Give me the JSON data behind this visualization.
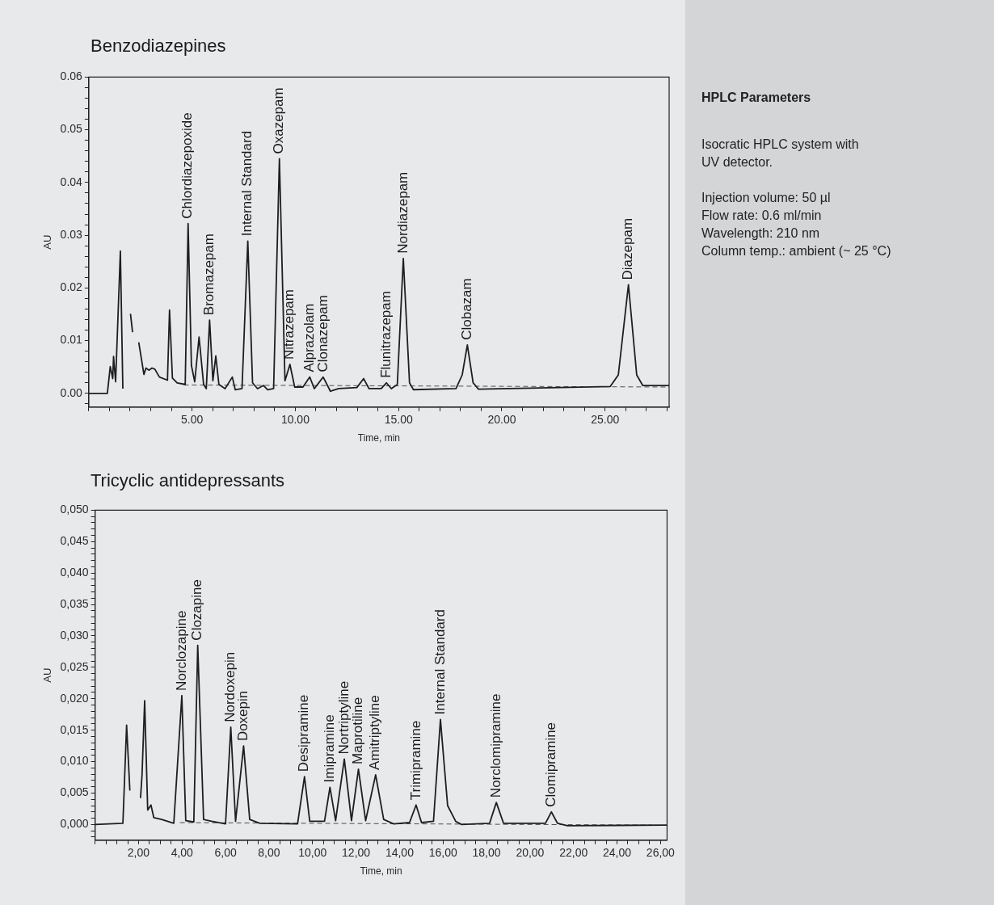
{
  "chart_data": [
    {
      "type": "line",
      "title": "Benzodiazepines",
      "xlabel": "Time, min",
      "ylabel": "AU",
      "xlim": [
        0,
        28.1
      ],
      "ylim": [
        -0.0026,
        0.06
      ],
      "xticks": [
        {
          "value": 0,
          "label": null
        },
        {
          "value": 1,
          "label": null
        },
        {
          "value": 2,
          "label": null
        },
        {
          "value": 3,
          "label": null
        },
        {
          "value": 4,
          "label": null
        },
        {
          "value": 5,
          "label": "5.00"
        },
        {
          "value": 6,
          "label": null
        },
        {
          "value": 7,
          "label": null
        },
        {
          "value": 8,
          "label": null
        },
        {
          "value": 9,
          "label": null
        },
        {
          "value": 10,
          "label": "10.00"
        },
        {
          "value": 11,
          "label": null
        },
        {
          "value": 12,
          "label": null
        },
        {
          "value": 13,
          "label": null
        },
        {
          "value": 14,
          "label": null
        },
        {
          "value": 15,
          "label": "15.00"
        },
        {
          "value": 16,
          "label": null
        },
        {
          "value": 17,
          "label": null
        },
        {
          "value": 18,
          "label": null
        },
        {
          "value": 19,
          "label": null
        },
        {
          "value": 20,
          "label": "20.00"
        },
        {
          "value": 21,
          "label": null
        },
        {
          "value": 22,
          "label": null
        },
        {
          "value": 23,
          "label": null
        },
        {
          "value": 24,
          "label": null
        },
        {
          "value": 25,
          "label": "25.00"
        },
        {
          "value": 26,
          "label": null
        },
        {
          "value": 27,
          "label": null
        },
        {
          "value": 28,
          "label": null
        }
      ],
      "yticks": [
        {
          "value": -0.002,
          "label": null
        },
        {
          "value": 0,
          "label": "0.00"
        },
        {
          "value": 0.002,
          "label": null
        },
        {
          "value": 0.004,
          "label": null
        },
        {
          "value": 0.006,
          "label": null
        },
        {
          "value": 0.008,
          "label": null
        },
        {
          "value": 0.01,
          "label": "0.01"
        },
        {
          "value": 0.012,
          "label": null
        },
        {
          "value": 0.014,
          "label": null
        },
        {
          "value": 0.016,
          "label": null
        },
        {
          "value": 0.018,
          "label": null
        },
        {
          "value": 0.02,
          "label": "0.02"
        },
        {
          "value": 0.022,
          "label": null
        },
        {
          "value": 0.024,
          "label": null
        },
        {
          "value": 0.026,
          "label": null
        },
        {
          "value": 0.028,
          "label": null
        },
        {
          "value": 0.03,
          "label": "0.03"
        },
        {
          "value": 0.032,
          "label": null
        },
        {
          "value": 0.034,
          "label": null
        },
        {
          "value": 0.036,
          "label": null
        },
        {
          "value": 0.038,
          "label": null
        },
        {
          "value": 0.04,
          "label": "0.04"
        },
        {
          "value": 0.042,
          "label": null
        },
        {
          "value": 0.044,
          "label": null
        },
        {
          "value": 0.046,
          "label": null
        },
        {
          "value": 0.048,
          "label": null
        },
        {
          "value": 0.05,
          "label": "0.05"
        },
        {
          "value": 0.052,
          "label": null
        },
        {
          "value": 0.054,
          "label": null
        },
        {
          "value": 0.056,
          "label": null
        },
        {
          "value": 0.058,
          "label": null
        },
        {
          "value": 0.06,
          "label": "0.06"
        }
      ],
      "series": [
        {
          "color": "#1e1e1e",
          "x": [
            0,
            0.9,
            1.04,
            1.16,
            1.2,
            1.3,
            1.53,
            1.65,
            1.72,
            1.85,
            2.02,
            2.12,
            2.2,
            2.3,
            2.42,
            2.67,
            2.77,
            2.91,
            3.06,
            3.2,
            3.42,
            3.81,
            3.91,
            4.05,
            4.28,
            4.67,
            4.81,
            4.97,
            5.13,
            5.34,
            5.56,
            5.69,
            5.85,
            6.01,
            6.15,
            6.3,
            6.6,
            6.95,
            7.09,
            7.42,
            7.7,
            7.93,
            8.17,
            8.46,
            8.66,
            8.95,
            9.23,
            9.5,
            9.74,
            9.97,
            10.37,
            10.7,
            10.92,
            11.35,
            11.7,
            12.1,
            12.98,
            13.31,
            13.57,
            14.16,
            14.41,
            14.65,
            14.94,
            15.23,
            15.53,
            15.72,
            17.78,
            18.08,
            18.33,
            18.61,
            18.87,
            25.25,
            25.64,
            26.13,
            26.53,
            26.82,
            27.9,
            28.1
          ],
          "values": [
            0,
            0,
            0.0051,
            0.0028,
            0.007,
            0.0022,
            0.027,
            0.0009,
            null,
            null,
            0.0151,
            0.0116,
            null,
            null,
            0.0097,
            0.0036,
            0.0048,
            0.0044,
            0.0048,
            0.0046,
            0.0031,
            0.0025,
            0.0158,
            0.0029,
            0.002,
            0.0017,
            0.0322,
            0.0053,
            0.0022,
            0.0107,
            0.0017,
            0.0009,
            0.0139,
            0.0024,
            0.0071,
            0.0017,
            0.0009,
            0.0031,
            0.0007,
            0.0009,
            0.0289,
            0.002,
            0.0009,
            0.0015,
            0.0007,
            0.0009,
            0.0445,
            0.0024,
            0.0055,
            0.0012,
            0.0012,
            0.0031,
            0.0009,
            0.0031,
            0.0004,
            0.0009,
            0.0011,
            0.0028,
            0.0009,
            0.0009,
            0.002,
            0.0009,
            0.0017,
            0.0256,
            0.002,
            0.0007,
            0.0009,
            0.0035,
            0.0092,
            0.002,
            0.0008,
            0.0013,
            0.0035,
            0.0206,
            0.0035,
            0.0015,
            0.0015,
            0.0015
          ]
        },
        {
          "color": "#4d4d4d",
          "line_style": "dashed",
          "x": [
            4.6,
            28.1
          ],
          "values": [
            0.0016,
            0.0012
          ]
        }
      ],
      "annotations": [
        {
          "text": "Chlordiazepoxide",
          "x": 4.81,
          "y": 0.0322
        },
        {
          "text": "Bromazepam",
          "x": 5.85,
          "y": 0.0139
        },
        {
          "text": "Internal Standard",
          "x": 7.7,
          "y": 0.0289
        },
        {
          "text": "Oxazepam",
          "x": 9.23,
          "y": 0.0445
        },
        {
          "text": "Nitrazepam",
          "x": 9.74,
          "y": 0.0055
        },
        {
          "text": "Alprazolam",
          "x": 10.7,
          "y": 0.0031
        },
        {
          "text": "Clonazepam",
          "x": 11.35,
          "y": 0.0031
        },
        {
          "text": "Flunitrazepam",
          "x": 14.41,
          "y": 0.002
        },
        {
          "text": "Nordiazepam",
          "x": 15.23,
          "y": 0.0256
        },
        {
          "text": "Clobazam",
          "x": 18.33,
          "y": 0.0092
        },
        {
          "text": "Diazepam",
          "x": 26.13,
          "y": 0.0206
        }
      ]
    },
    {
      "type": "line",
      "title": "Tricyclic antidepressants",
      "xlabel": "Time, min",
      "ylabel": "AU",
      "xlim": [
        0,
        26.3
      ],
      "ylim": [
        -0.0025,
        0.05
      ],
      "xticks": [
        {
          "value": 0,
          "label": null
        },
        {
          "value": 0.5,
          "label": null
        },
        {
          "value": 1,
          "label": null
        },
        {
          "value": 1.5,
          "label": null
        },
        {
          "value": 2,
          "label": "2,00"
        },
        {
          "value": 2.5,
          "label": null
        },
        {
          "value": 3,
          "label": null
        },
        {
          "value": 3.5,
          "label": null
        },
        {
          "value": 4,
          "label": "4,00"
        },
        {
          "value": 4.5,
          "label": null
        },
        {
          "value": 5,
          "label": null
        },
        {
          "value": 5.5,
          "label": null
        },
        {
          "value": 6,
          "label": "6,00"
        },
        {
          "value": 6.5,
          "label": null
        },
        {
          "value": 7,
          "label": null
        },
        {
          "value": 7.5,
          "label": null
        },
        {
          "value": 8,
          "label": "8,00"
        },
        {
          "value": 8.5,
          "label": null
        },
        {
          "value": 9,
          "label": null
        },
        {
          "value": 9.5,
          "label": null
        },
        {
          "value": 10,
          "label": "10,00"
        },
        {
          "value": 10.5,
          "label": null
        },
        {
          "value": 11,
          "label": null
        },
        {
          "value": 11.5,
          "label": null
        },
        {
          "value": 12,
          "label": "12,00"
        },
        {
          "value": 12.5,
          "label": null
        },
        {
          "value": 13,
          "label": null
        },
        {
          "value": 13.5,
          "label": null
        },
        {
          "value": 14,
          "label": "14,00"
        },
        {
          "value": 14.5,
          "label": null
        },
        {
          "value": 15,
          "label": null
        },
        {
          "value": 15.5,
          "label": null
        },
        {
          "value": 16,
          "label": "16,00"
        },
        {
          "value": 16.5,
          "label": null
        },
        {
          "value": 17,
          "label": null
        },
        {
          "value": 17.5,
          "label": null
        },
        {
          "value": 18,
          "label": "18,00"
        },
        {
          "value": 18.5,
          "label": null
        },
        {
          "value": 19,
          "label": null
        },
        {
          "value": 19.5,
          "label": null
        },
        {
          "value": 20,
          "label": "20,00"
        },
        {
          "value": 20.5,
          "label": null
        },
        {
          "value": 21,
          "label": null
        },
        {
          "value": 21.5,
          "label": null
        },
        {
          "value": 22,
          "label": "22,00"
        },
        {
          "value": 22.5,
          "label": null
        },
        {
          "value": 23,
          "label": null
        },
        {
          "value": 23.5,
          "label": null
        },
        {
          "value": 24,
          "label": "24,00"
        },
        {
          "value": 24.5,
          "label": null
        },
        {
          "value": 25,
          "label": null
        },
        {
          "value": 25.5,
          "label": null
        },
        {
          "value": 26,
          "label": "26,00"
        }
      ],
      "yticks": [
        {
          "value": -0.002,
          "label": null
        },
        {
          "value": -0.001,
          "label": null
        },
        {
          "value": 0,
          "label": "0,000"
        },
        {
          "value": 0.001,
          "label": null
        },
        {
          "value": 0.002,
          "label": null
        },
        {
          "value": 0.003,
          "label": null
        },
        {
          "value": 0.004,
          "label": null
        },
        {
          "value": 0.005,
          "label": "0,005"
        },
        {
          "value": 0.006,
          "label": null
        },
        {
          "value": 0.007,
          "label": null
        },
        {
          "value": 0.008,
          "label": null
        },
        {
          "value": 0.009,
          "label": null
        },
        {
          "value": 0.01,
          "label": "0,010"
        },
        {
          "value": 0.011,
          "label": null
        },
        {
          "value": 0.012,
          "label": null
        },
        {
          "value": 0.013,
          "label": null
        },
        {
          "value": 0.014,
          "label": null
        },
        {
          "value": 0.015,
          "label": "0,015"
        },
        {
          "value": 0.016,
          "label": null
        },
        {
          "value": 0.017,
          "label": null
        },
        {
          "value": 0.018,
          "label": null
        },
        {
          "value": 0.019,
          "label": null
        },
        {
          "value": 0.02,
          "label": "0,020"
        },
        {
          "value": 0.021,
          "label": null
        },
        {
          "value": 0.022,
          "label": null
        },
        {
          "value": 0.023,
          "label": null
        },
        {
          "value": 0.024,
          "label": null
        },
        {
          "value": 0.025,
          "label": "0,025"
        },
        {
          "value": 0.026,
          "label": null
        },
        {
          "value": 0.027,
          "label": null
        },
        {
          "value": 0.028,
          "label": null
        },
        {
          "value": 0.029,
          "label": null
        },
        {
          "value": 0.03,
          "label": "0,030"
        },
        {
          "value": 0.031,
          "label": null
        },
        {
          "value": 0.032,
          "label": null
        },
        {
          "value": 0.033,
          "label": null
        },
        {
          "value": 0.034,
          "label": null
        },
        {
          "value": 0.035,
          "label": "0,035"
        },
        {
          "value": 0.036,
          "label": null
        },
        {
          "value": 0.037,
          "label": null
        },
        {
          "value": 0.038,
          "label": null
        },
        {
          "value": 0.039,
          "label": null
        },
        {
          "value": 0.04,
          "label": "0,040"
        },
        {
          "value": 0.041,
          "label": null
        },
        {
          "value": 0.042,
          "label": null
        },
        {
          "value": 0.043,
          "label": null
        },
        {
          "value": 0.044,
          "label": null
        },
        {
          "value": 0.045,
          "label": "0,045"
        },
        {
          "value": 0.046,
          "label": null
        },
        {
          "value": 0.047,
          "label": null
        },
        {
          "value": 0.048,
          "label": null
        },
        {
          "value": 0.049,
          "label": null
        },
        {
          "value": 0.05,
          "label": "0,050"
        }
      ],
      "series": [
        {
          "color": "#1e1e1e",
          "x": [
            0,
            1.28,
            1.45,
            1.6,
            1.65,
            1.93,
            2.09,
            2.16,
            2.28,
            2.42,
            2.57,
            2.7,
            3.06,
            3.62,
            3.99,
            4.17,
            4.54,
            4.72,
            4.99,
            5.36,
            6,
            6.24,
            6.46,
            6.83,
            7.11,
            7.57,
            9.31,
            9.63,
            9.87,
            10.55,
            10.8,
            11.06,
            11.46,
            11.79,
            12.11,
            12.44,
            12.9,
            13.27,
            13.73,
            14.46,
            14.76,
            15.01,
            15.56,
            15.88,
            16.21,
            16.58,
            16.85,
            18.14,
            18.45,
            18.78,
            20.71,
            20.98,
            21.26,
            21.72,
            26.1,
            26.3
          ],
          "values": [
            0,
            0.0002,
            0.0158,
            0.0054,
            null,
            null,
            0.0042,
            0.0079,
            0.0197,
            0.0023,
            0.0031,
            0.0011,
            0.0008,
            0.0002,
            0.0205,
            0.0006,
            0.0004,
            0.0285,
            0.0008,
            0.0005,
            0.0001,
            0.0155,
            0.0005,
            0.0125,
            0.0008,
            0.0002,
            0.0001,
            0.0076,
            0.0005,
            0.0005,
            0.0059,
            0.0006,
            0.0104,
            0.0006,
            0.0088,
            0.0006,
            0.0079,
            0.0008,
            0.0001,
            0.0003,
            0.0031,
            0.0003,
            0.0005,
            0.0167,
            0.003,
            0.0005,
            0,
            0.0002,
            0.0035,
            0.0002,
            0.0002,
            0.002,
            0.0002,
            -0.0002,
            -0.0001,
            -0.0001
          ]
        },
        {
          "color": "#4d4d4d",
          "line_style": "dashed",
          "x": [
            3.9,
            25.6
          ],
          "values": [
            0.0003,
            -0.0001
          ]
        }
      ],
      "annotations": [
        {
          "text": "Norclozapine",
          "x": 3.99,
          "y": 0.0205
        },
        {
          "text": "Clozapine",
          "x": 4.72,
          "y": 0.0285
        },
        {
          "text": "Nordoxepin",
          "x": 6.24,
          "y": 0.0155
        },
        {
          "text": "Doxepin",
          "x": 6.83,
          "y": 0.0125
        },
        {
          "text": "Desipramine",
          "x": 9.63,
          "y": 0.0076
        },
        {
          "text": "Imipramine",
          "x": 10.8,
          "y": 0.0059
        },
        {
          "text": "Nortriptyline",
          "x": 11.46,
          "y": 0.0104
        },
        {
          "text": "Maprotiline",
          "x": 12.11,
          "y": 0.0088
        },
        {
          "text": "Amitriptyline",
          "x": 12.9,
          "y": 0.0079
        },
        {
          "text": "Trimipramine",
          "x": 14.76,
          "y": 0.0031
        },
        {
          "text": "Internal Standard",
          "x": 15.88,
          "y": 0.0167
        },
        {
          "text": "Norclomipramine",
          "x": 18.45,
          "y": 0.0035
        },
        {
          "text": "Clomipramine",
          "x": 20.98,
          "y": 0.002
        }
      ]
    },
    {
      "type": "other",
      "title": "HPLC Parameters",
      "annotations": [
        "Isocratic HPLC system with UV detector.",
        "Injection volume: 50 µl",
        "Flow rate: 0.6 ml/min",
        "Wavelength: 210 nm",
        "Column temp.: ambient (~ 25 °C)"
      ]
    }
  ]
}
